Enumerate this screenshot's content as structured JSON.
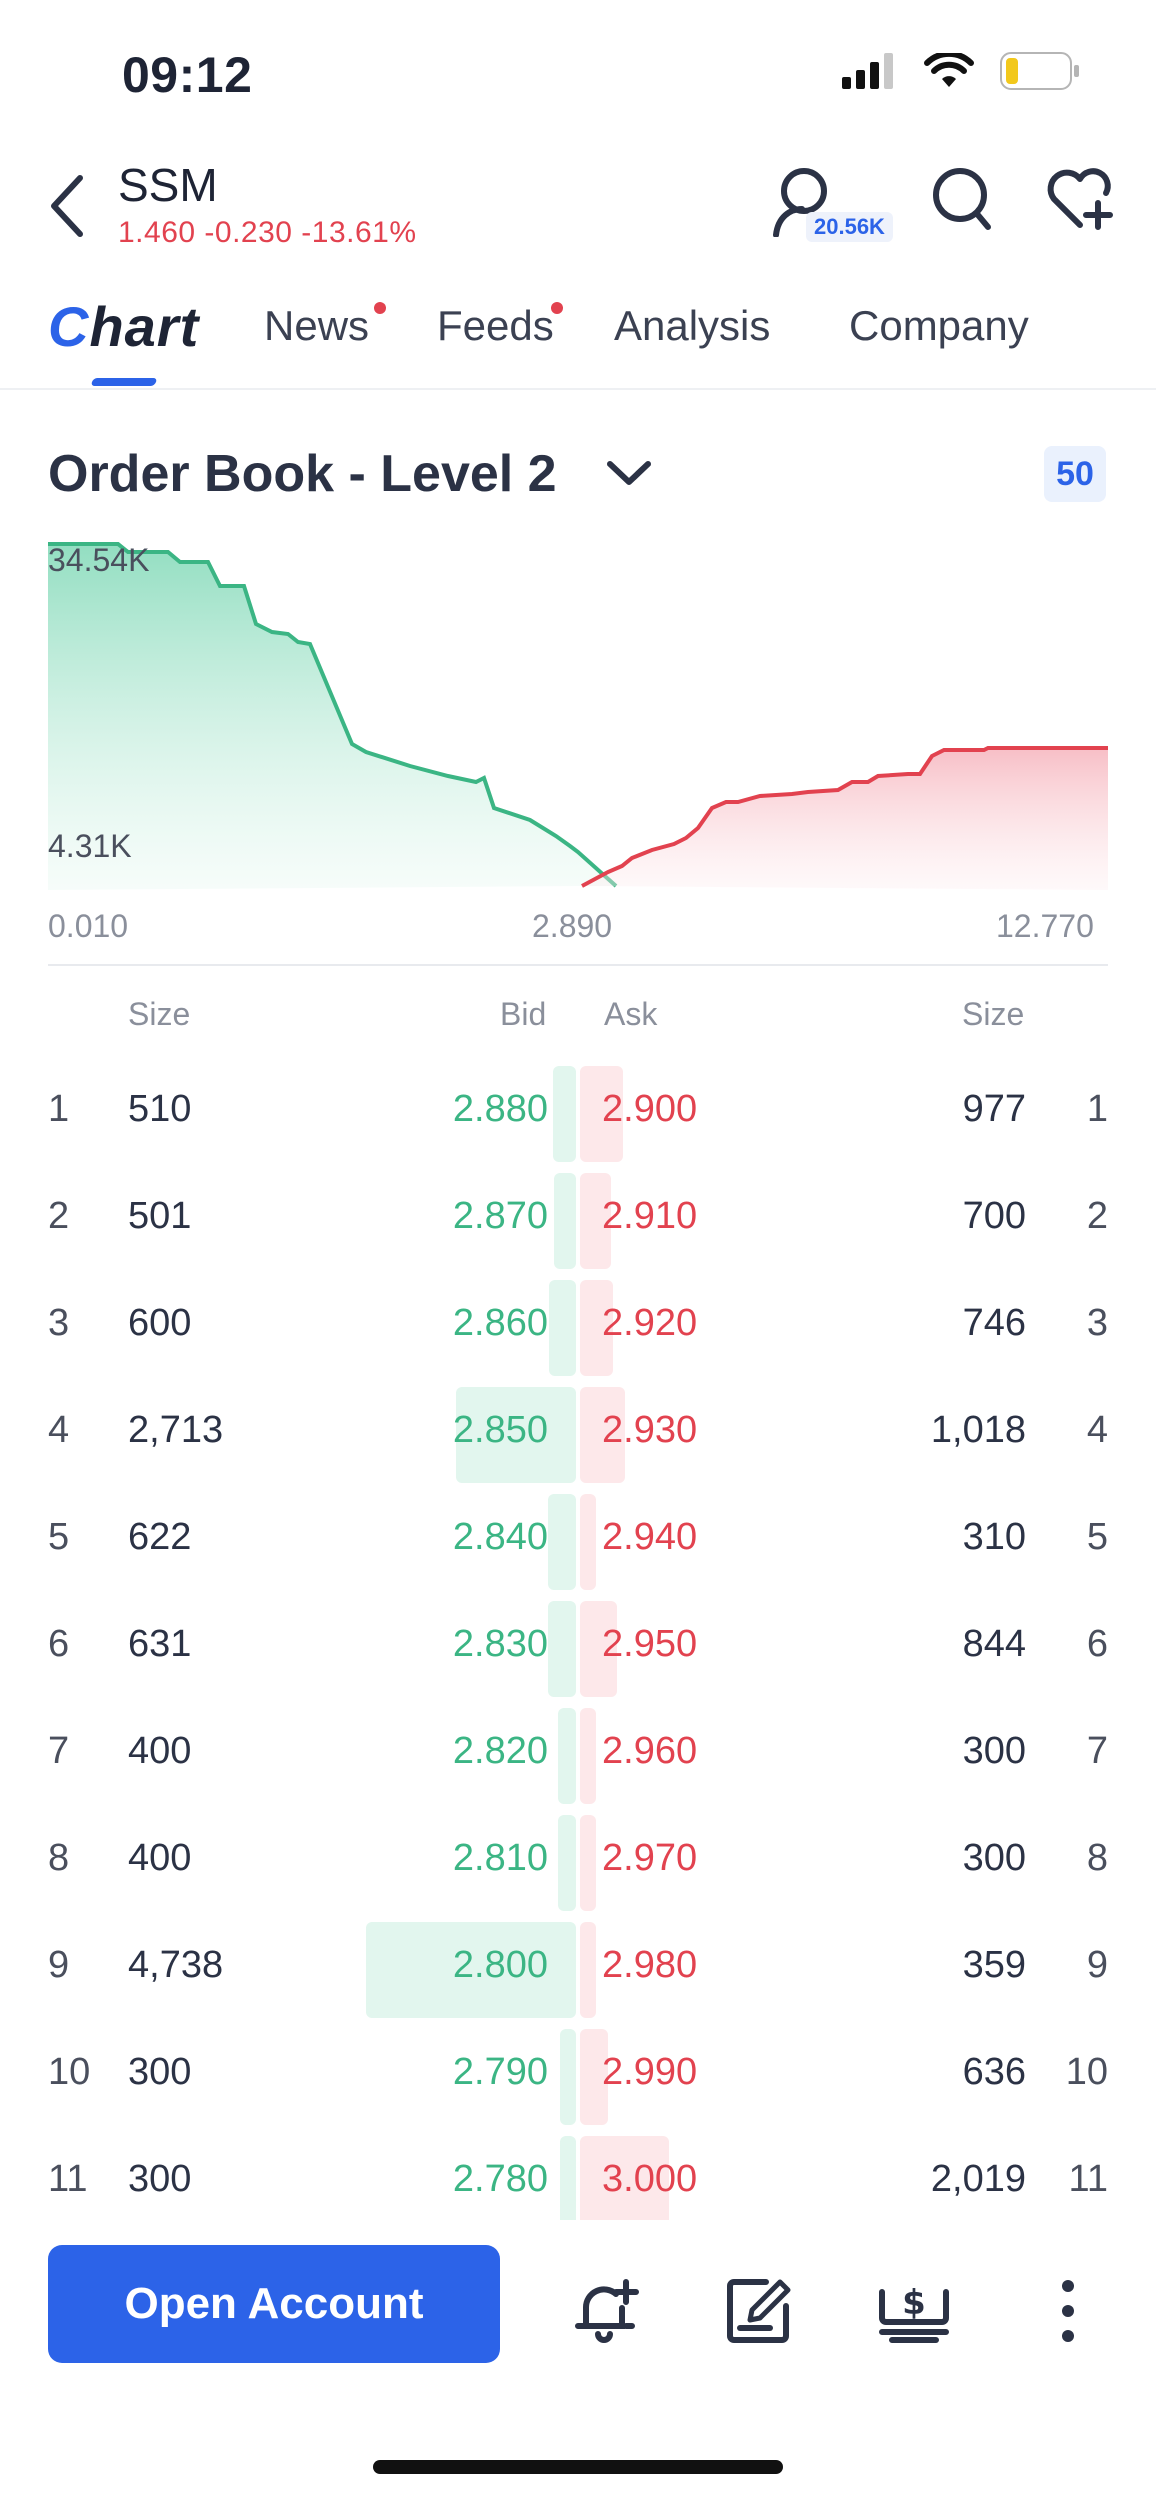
{
  "status_bar": {
    "time": "09:12"
  },
  "header": {
    "ticker": "SSM",
    "quote": "1.460 -0.230 -13.61%",
    "followers": "20.56K"
  },
  "tabs": [
    {
      "label": "Chart",
      "active": true,
      "dot": false
    },
    {
      "label": "News",
      "active": false,
      "dot": true
    },
    {
      "label": "Feeds",
      "active": false,
      "dot": true
    },
    {
      "label": "Analysis",
      "active": false,
      "dot": false
    },
    {
      "label": "Company",
      "active": false,
      "dot": false
    }
  ],
  "order_book": {
    "title": "Order Book - Level 2",
    "depth": "50",
    "chart": {
      "y_top_label": "34.54K",
      "y_bottom_label": "4.31K",
      "x_left": "0.010",
      "x_mid": "2.890",
      "x_right": "12.770"
    },
    "columns": {
      "size_left": "Size",
      "bid": "Bid",
      "ask": "Ask",
      "size_right": "Size"
    },
    "rows": [
      {
        "n": "1",
        "bid_size": "510",
        "bid": "2.880",
        "ask": "2.900",
        "ask_size": "977"
      },
      {
        "n": "2",
        "bid_size": "501",
        "bid": "2.870",
        "ask": "2.910",
        "ask_size": "700"
      },
      {
        "n": "3",
        "bid_size": "600",
        "bid": "2.860",
        "ask": "2.920",
        "ask_size": "746"
      },
      {
        "n": "4",
        "bid_size": "2,713",
        "bid": "2.850",
        "ask": "2.930",
        "ask_size": "1,018"
      },
      {
        "n": "5",
        "bid_size": "622",
        "bid": "2.840",
        "ask": "2.940",
        "ask_size": "310"
      },
      {
        "n": "6",
        "bid_size": "631",
        "bid": "2.830",
        "ask": "2.950",
        "ask_size": "844"
      },
      {
        "n": "7",
        "bid_size": "400",
        "bid": "2.820",
        "ask": "2.960",
        "ask_size": "300"
      },
      {
        "n": "8",
        "bid_size": "400",
        "bid": "2.810",
        "ask": "2.970",
        "ask_size": "300"
      },
      {
        "n": "9",
        "bid_size": "4,738",
        "bid": "2.800",
        "ask": "2.980",
        "ask_size": "359"
      },
      {
        "n": "10",
        "bid_size": "300",
        "bid": "2.790",
        "ask": "2.990",
        "ask_size": "636"
      },
      {
        "n": "11",
        "bid_size": "300",
        "bid": "2.780",
        "ask": "3.000",
        "ask_size": "2,019"
      }
    ]
  },
  "toolbar": {
    "open_account": "Open Account"
  },
  "colors": {
    "accent": "#2c63e8",
    "bid": "#3bb584",
    "ask": "#e2424f"
  }
}
